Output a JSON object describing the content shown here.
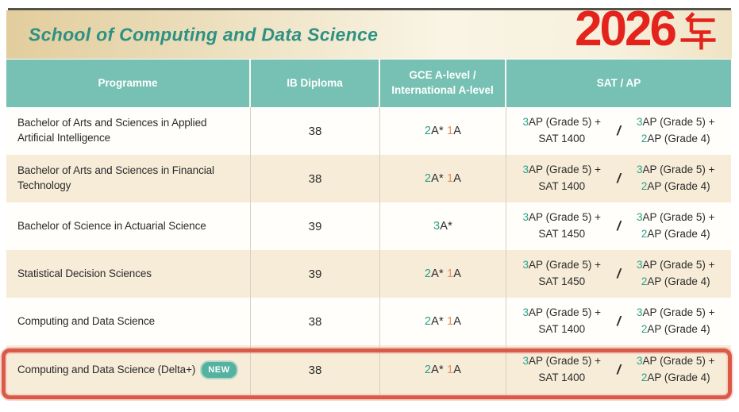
{
  "header": {
    "title": "School of Computing and Data Science",
    "year": "2026",
    "year_suffix": "年"
  },
  "table": {
    "columns": [
      {
        "label": "Programme"
      },
      {
        "label": "IB Diploma"
      },
      {
        "label": "GCE A-level /",
        "label2": "International A-level"
      },
      {
        "label": "SAT / AP"
      }
    ],
    "rows": [
      {
        "programme": "Bachelor of Arts and Sciences in Applied Artificial Intelligence",
        "new_badge": "",
        "ib": "38",
        "gce": {
          "astar_count": "2",
          "astar_label": "A*",
          "a_count": "1",
          "a_label": "A"
        },
        "sat": {
          "option1": {
            "ap_count": "3",
            "ap_label": "AP (Grade 5) +",
            "line2": "SAT 1400"
          },
          "separator": "/",
          "option2": {
            "ap_count": "3",
            "ap_label": "AP (Grade 5) +",
            "ap2_count": "2",
            "ap2_label": "AP (Grade 4)"
          }
        },
        "highlighted": false
      },
      {
        "programme": "Bachelor of Arts and Sciences in Financial Technology",
        "new_badge": "",
        "ib": "38",
        "gce": {
          "astar_count": "2",
          "astar_label": "A*",
          "a_count": "1",
          "a_label": "A"
        },
        "sat": {
          "option1": {
            "ap_count": "3",
            "ap_label": "AP (Grade 5) +",
            "line2": "SAT 1400"
          },
          "separator": "/",
          "option2": {
            "ap_count": "3",
            "ap_label": "AP (Grade 5) +",
            "ap2_count": "2",
            "ap2_label": "AP (Grade 4)"
          }
        },
        "highlighted": false
      },
      {
        "programme": "Bachelor of Science in Actuarial Science",
        "new_badge": "",
        "ib": "39",
        "gce": {
          "astar_count": "3",
          "astar_label": "A*",
          "a_count": "",
          "a_label": ""
        },
        "sat": {
          "option1": {
            "ap_count": "3",
            "ap_label": "AP (Grade 5) +",
            "line2": "SAT 1450"
          },
          "separator": "/",
          "option2": {
            "ap_count": "3",
            "ap_label": "AP (Grade 5) +",
            "ap2_count": "2",
            "ap2_label": "AP (Grade 4)"
          }
        },
        "highlighted": false
      },
      {
        "programme": "Statistical Decision Sciences",
        "new_badge": "",
        "ib": "39",
        "gce": {
          "astar_count": "2",
          "astar_label": "A*",
          "a_count": "1",
          "a_label": "A"
        },
        "sat": {
          "option1": {
            "ap_count": "3",
            "ap_label": "AP (Grade 5) +",
            "line2": "SAT 1450"
          },
          "separator": "/",
          "option2": {
            "ap_count": "3",
            "ap_label": "AP (Grade 5) +",
            "ap2_count": "2",
            "ap2_label": "AP (Grade 4)"
          }
        },
        "highlighted": false
      },
      {
        "programme": "Computing and Data Science",
        "new_badge": "",
        "ib": "38",
        "gce": {
          "astar_count": "2",
          "astar_label": "A*",
          "a_count": "1",
          "a_label": "A"
        },
        "sat": {
          "option1": {
            "ap_count": "3",
            "ap_label": "AP (Grade 5) +",
            "line2": "SAT 1400"
          },
          "separator": "/",
          "option2": {
            "ap_count": "3",
            "ap_label": "AP (Grade 5) +",
            "ap2_count": "2",
            "ap2_label": "AP (Grade 4)"
          }
        },
        "highlighted": false
      },
      {
        "programme": "Computing and Data Science (Delta+)",
        "new_badge": "NEW",
        "ib": "38",
        "gce": {
          "astar_count": "2",
          "astar_label": "A*",
          "a_count": "1",
          "a_label": "A"
        },
        "sat": {
          "option1": {
            "ap_count": "3",
            "ap_label": "AP (Grade 5) +",
            "line2": "SAT 1400"
          },
          "separator": "/",
          "option2": {
            "ap_count": "3",
            "ap_label": "AP (Grade 5) +",
            "ap2_count": "2",
            "ap2_label": "AP (Grade 4)"
          }
        },
        "highlighted": true
      }
    ]
  },
  "colors": {
    "header_teal": "#76c1b3",
    "title_teal": "#2d9183",
    "year_red": "#e3231c",
    "row_beige": "#f6ecd8",
    "highlight_red": "#db5947",
    "digit_teal": "#2aa18b",
    "digit_orange": "#e88f62",
    "badge_teal": "#55b2a1"
  }
}
